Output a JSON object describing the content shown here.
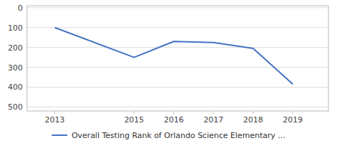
{
  "chart_data": {
    "type": "line",
    "x": [
      2013,
      2015,
      2016,
      2017,
      2018,
      2019
    ],
    "series": [
      {
        "name": "Overall Testing Rank of Orlando Science Elementary ...",
        "color": "#4472c4",
        "values": [
          100,
          250,
          170,
          175,
          205,
          385
        ]
      }
    ],
    "xlim": [
      2012.3,
      2019.9
    ],
    "ylim": [
      520,
      -10
    ],
    "xticks": [
      2013,
      2015,
      2016,
      2017,
      2018,
      2019
    ],
    "yticks": [
      0,
      100,
      200,
      300,
      400,
      500
    ],
    "grid": true,
    "legend": "bottom"
  }
}
